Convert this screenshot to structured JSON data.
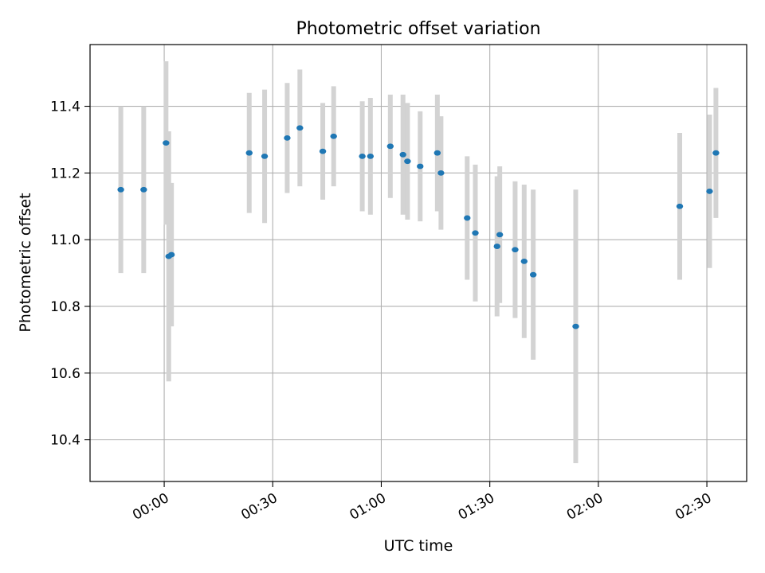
{
  "chart_data": {
    "type": "scatter",
    "title": "Photometric offset variation",
    "xlabel": "UTC time",
    "ylabel": "Photometric offset",
    "x_unit": "UTC time (hh:mm)",
    "xlim": [
      "-00:20:30",
      "02:41:00"
    ],
    "ylim": [
      10.275,
      11.585
    ],
    "grid": true,
    "x_ticks": [
      {
        "value": "00:00",
        "label": "00:00"
      },
      {
        "value": "00:30",
        "label": "00:30"
      },
      {
        "value": "01:00",
        "label": "01:00"
      },
      {
        "value": "01:30",
        "label": "01:30"
      },
      {
        "value": "02:00",
        "label": "02:00"
      },
      {
        "value": "02:30",
        "label": "02:30"
      }
    ],
    "y_ticks": [
      {
        "value": 10.4,
        "label": "10.4"
      },
      {
        "value": 10.6,
        "label": "10.6"
      },
      {
        "value": 10.8,
        "label": "10.8"
      },
      {
        "value": 11.0,
        "label": "11.0"
      },
      {
        "value": 11.2,
        "label": "11.2"
      },
      {
        "value": 11.4,
        "label": "11.4"
      }
    ],
    "series": [
      {
        "marker_color": "#1f77b4",
        "errorbar_color": "#d3d3d3",
        "points": [
          {
            "x": "-00:12:00",
            "y": 11.15,
            "yerr": 0.25
          },
          {
            "x": "-00:05:40",
            "y": 11.15,
            "yerr": 0.25
          },
          {
            "x": "00:00:30",
            "y": 11.29,
            "yerr": 0.245
          },
          {
            "x": "00:01:15",
            "y": 10.95,
            "yerr": 0.375
          },
          {
            "x": "00:02:00",
            "y": 10.955,
            "yerr": 0.215
          },
          {
            "x": "00:23:30",
            "y": 11.26,
            "yerr": 0.18
          },
          {
            "x": "00:27:45",
            "y": 11.25,
            "yerr": 0.2
          },
          {
            "x": "00:34:00",
            "y": 11.305,
            "yerr": 0.165
          },
          {
            "x": "00:37:30",
            "y": 11.335,
            "yerr": 0.175
          },
          {
            "x": "00:43:50",
            "y": 11.265,
            "yerr": 0.145
          },
          {
            "x": "00:46:50",
            "y": 11.31,
            "yerr": 0.15
          },
          {
            "x": "00:54:45",
            "y": 11.25,
            "yerr": 0.165
          },
          {
            "x": "00:57:00",
            "y": 11.25,
            "yerr": 0.175
          },
          {
            "x": "01:02:30",
            "y": 11.28,
            "yerr": 0.155
          },
          {
            "x": "01:06:00",
            "y": 11.255,
            "yerr": 0.18
          },
          {
            "x": "01:07:15",
            "y": 11.235,
            "yerr": 0.175
          },
          {
            "x": "01:10:45",
            "y": 11.22,
            "yerr": 0.165
          },
          {
            "x": "01:15:30",
            "y": 11.26,
            "yerr": 0.175
          },
          {
            "x": "01:16:30",
            "y": 11.2,
            "yerr": 0.17
          },
          {
            "x": "01:23:45",
            "y": 11.065,
            "yerr": 0.185
          },
          {
            "x": "01:26:00",
            "y": 11.02,
            "yerr": 0.205
          },
          {
            "x": "01:32:00",
            "y": 10.98,
            "yerr": 0.21
          },
          {
            "x": "01:32:45",
            "y": 11.015,
            "yerr": 0.205
          },
          {
            "x": "01:37:00",
            "y": 10.97,
            "yerr": 0.205
          },
          {
            "x": "01:39:30",
            "y": 10.935,
            "yerr": 0.23
          },
          {
            "x": "01:42:00",
            "y": 10.895,
            "yerr": 0.255
          },
          {
            "x": "01:53:45",
            "y": 10.74,
            "yerr": 0.41
          },
          {
            "x": "02:22:30",
            "y": 11.1,
            "yerr": 0.22
          },
          {
            "x": "02:30:45",
            "y": 11.145,
            "yerr": 0.23
          },
          {
            "x": "02:32:30",
            "y": 11.26,
            "yerr": 0.195
          }
        ]
      }
    ]
  }
}
